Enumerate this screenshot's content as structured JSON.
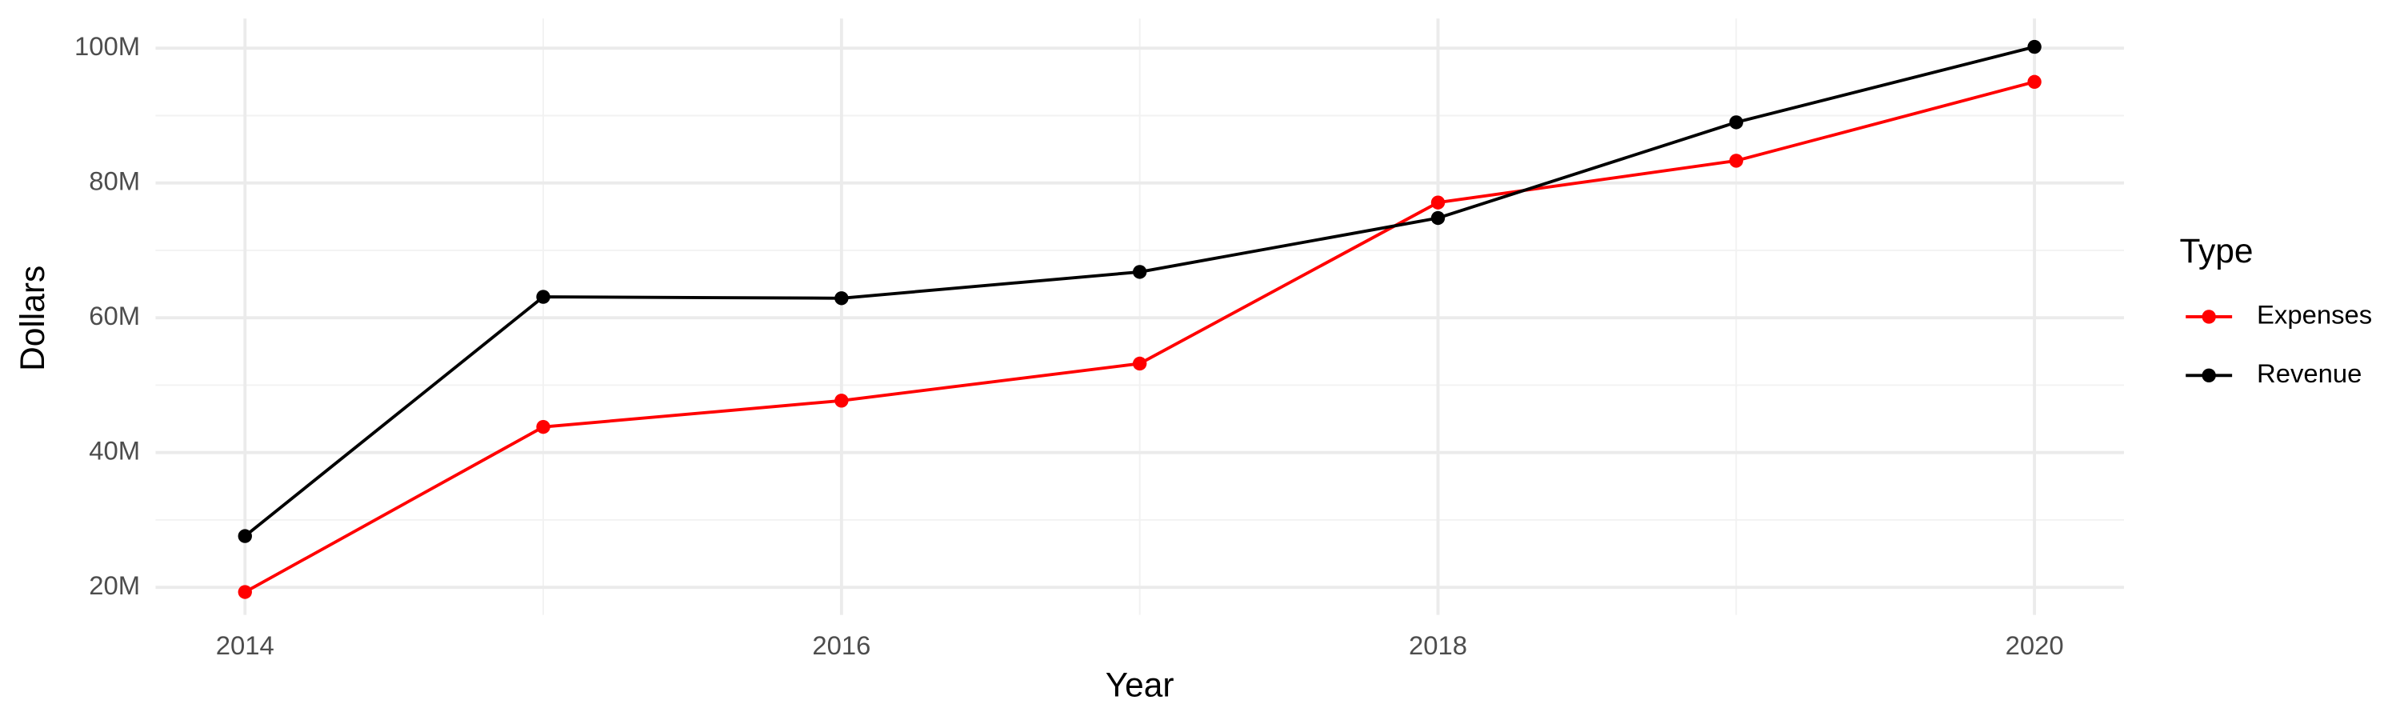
{
  "chart_data": {
    "type": "line",
    "x_label": "Year",
    "y_label": "Dollars",
    "legend_title": "Type",
    "legend": "right",
    "grid": true,
    "x": [
      2014,
      2015,
      2016,
      2017,
      2018,
      2019,
      2020
    ],
    "series": [
      {
        "name": "Expenses",
        "color": "#ff0000",
        "values": [
          19300000,
          43800000,
          47700000,
          53200000,
          77100000,
          83300000,
          95000000
        ]
      },
      {
        "name": "Revenue",
        "color": "#000000",
        "values": [
          27600000,
          63100000,
          62900000,
          66800000,
          74800000,
          89000000,
          100200000
        ]
      }
    ],
    "xlim": [
      2013.7,
      2020.3
    ],
    "xticks": [
      2014,
      2016,
      2018,
      2020
    ],
    "ylim": [
      15900000,
      104400000
    ],
    "yticks": [
      {
        "value": 20000000,
        "label": "20M"
      },
      {
        "value": 40000000,
        "label": "40M"
      },
      {
        "value": 60000000,
        "label": "60M"
      },
      {
        "value": 80000000,
        "label": "80M"
      },
      {
        "value": 100000000,
        "label": "100M"
      }
    ]
  }
}
